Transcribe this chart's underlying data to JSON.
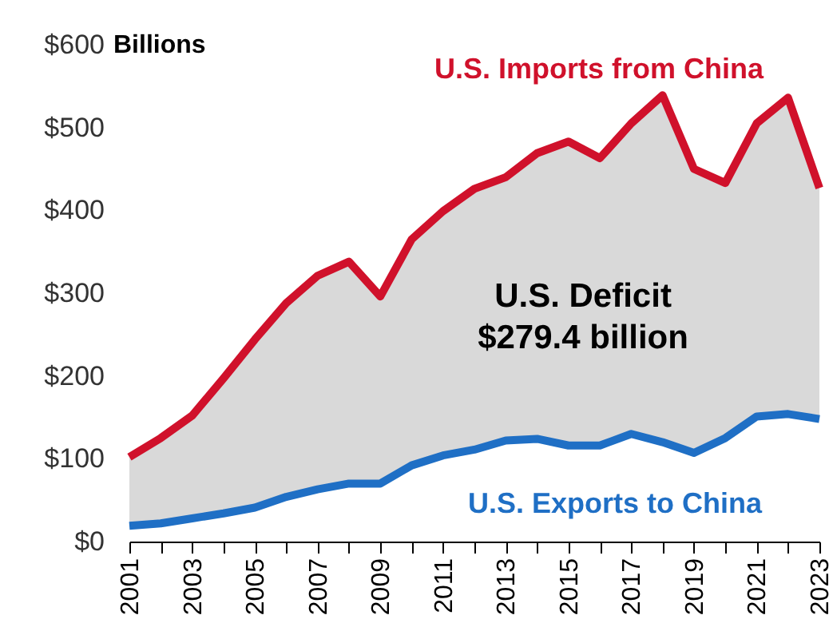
{
  "chart_data": {
    "type": "line",
    "ylabel": "Billions",
    "x": [
      2001,
      2002,
      2003,
      2004,
      2005,
      2006,
      2007,
      2008,
      2009,
      2010,
      2011,
      2012,
      2013,
      2014,
      2015,
      2016,
      2017,
      2018,
      2019,
      2020,
      2021,
      2022,
      2023
    ],
    "series": [
      {
        "name": "U.S. Imports from China",
        "color": "#d0112b",
        "values": [
          102,
          125,
          152,
          197,
          244,
          288,
          321,
          338,
          296,
          365,
          399,
          426,
          440,
          469,
          483,
          463,
          505,
          539,
          450,
          433,
          505,
          536,
          427
        ]
      },
      {
        "name": "U.S. Exports to China",
        "color": "#1f6fc5",
        "values": [
          19,
          22,
          28,
          34,
          41,
          54,
          63,
          70,
          70,
          92,
          104,
          111,
          122,
          124,
          116,
          116,
          130,
          120,
          107,
          125,
          151,
          154,
          148
        ],
        "lower": [
          19,
          22,
          28,
          34,
          41,
          54,
          63,
          70,
          70,
          92,
          104,
          111,
          122,
          124,
          116,
          116,
          130,
          120,
          107,
          125,
          151,
          154,
          148
        ],
        "upper": [
          102,
          125,
          152,
          197,
          244,
          288,
          321,
          338,
          296,
          365,
          399,
          426,
          440,
          469,
          483,
          463,
          505,
          539,
          450,
          433,
          505,
          536,
          427
        ]
      }
    ],
    "annotations": [
      "U.S. Deficit",
      "$279.4 billion"
    ],
    "xlim": [
      2001,
      2023
    ],
    "xticks": [
      2001,
      {
        "value": 2002,
        "label": null
      },
      2003,
      {
        "value": 2004,
        "label": null
      },
      2005,
      {
        "value": 2006,
        "label": null
      },
      2007,
      {
        "value": 2008,
        "label": null
      },
      2009,
      {
        "value": 2010,
        "label": null
      },
      2011,
      {
        "value": 2012,
        "label": null
      },
      2013,
      {
        "value": 2014,
        "label": null
      },
      2015,
      {
        "value": 2016,
        "label": null
      },
      2017,
      {
        "value": 2018,
        "label": null
      },
      2019,
      {
        "value": 2020,
        "label": null
      },
      2021,
      {
        "value": 2022,
        "label": null
      },
      2023
    ],
    "ylim": [
      0,
      600
    ],
    "yticks": [
      {
        "value": 0,
        "label": "$0"
      },
      {
        "value": 100,
        "label": "$100"
      },
      {
        "value": 200,
        "label": "$200"
      },
      {
        "value": 300,
        "label": "$300"
      },
      {
        "value": 400,
        "label": "$400"
      },
      {
        "value": 500,
        "label": "$500"
      },
      {
        "value": 600,
        "label": "$600"
      }
    ],
    "grid": false,
    "marker": "none",
    "line_style": "solid"
  }
}
